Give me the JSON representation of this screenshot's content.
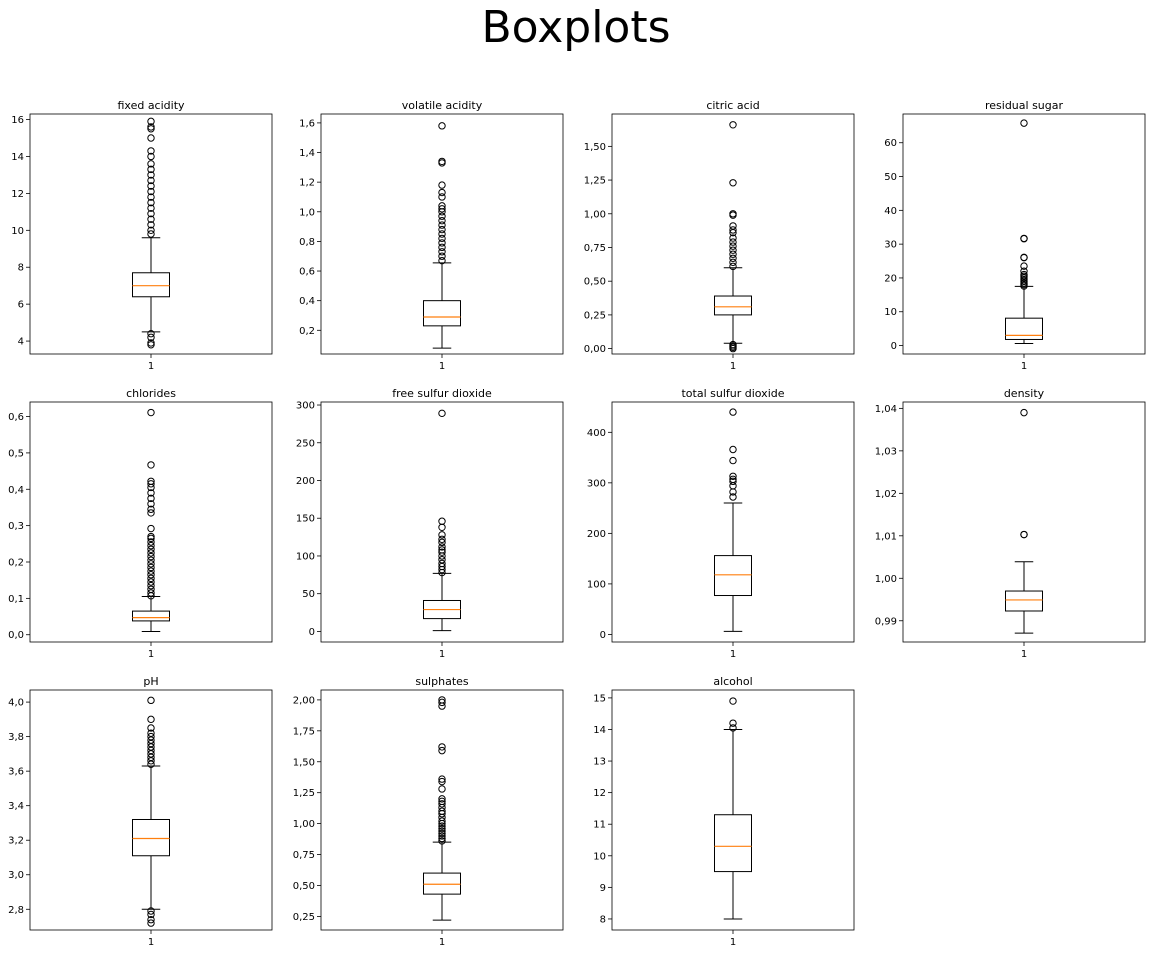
{
  "title": "Boxplots",
  "colors": {
    "median": "#ff7f0e",
    "box": "#000000",
    "flier": "#000000"
  },
  "chart_data": [
    {
      "type": "boxplot",
      "title": "fixed acidity",
      "categories": [
        "1"
      ],
      "ylim": [
        3.3,
        16.3
      ],
      "yticks": [
        4,
        6,
        8,
        10,
        12,
        14,
        16
      ],
      "ytick_labels": [
        "4",
        "6",
        "8",
        "10",
        "12",
        "14",
        "16"
      ],
      "whisker_low": 4.5,
      "q1": 6.4,
      "median": 7.0,
      "q3": 7.7,
      "whisker_high": 9.6,
      "outliers": [
        3.8,
        3.9,
        4.2,
        4.4,
        9.8,
        10.0,
        10.3,
        10.6,
        10.9,
        11.2,
        11.5,
        11.8,
        12.1,
        12.4,
        12.7,
        13.0,
        13.3,
        13.6,
        14.0,
        14.3,
        15.0,
        15.5,
        15.6,
        15.9
      ]
    },
    {
      "type": "boxplot",
      "title": "volatile acidity",
      "categories": [
        "1"
      ],
      "ylim": [
        0.04,
        1.66
      ],
      "yticks": [
        0.2,
        0.4,
        0.6,
        0.8,
        1.0,
        1.2,
        1.4,
        1.6
      ],
      "ytick_labels": [
        "0,2",
        "0,4",
        "0,6",
        "0,8",
        "1,0",
        "1,2",
        "1,4",
        "1,6"
      ],
      "whisker_low": 0.08,
      "q1": 0.23,
      "median": 0.29,
      "q3": 0.4,
      "whisker_high": 0.655,
      "outliers": [
        0.67,
        0.7,
        0.73,
        0.76,
        0.79,
        0.82,
        0.85,
        0.88,
        0.91,
        0.94,
        0.97,
        1.0,
        1.02,
        1.04,
        1.1,
        1.13,
        1.18,
        1.33,
        1.34,
        1.58
      ]
    },
    {
      "type": "boxplot",
      "title": "citric acid",
      "categories": [
        "1"
      ],
      "ylim": [
        -0.04,
        1.74
      ],
      "yticks": [
        0.0,
        0.25,
        0.5,
        0.75,
        1.0,
        1.25,
        1.5
      ],
      "ytick_labels": [
        "0,00",
        "0,25",
        "0,50",
        "0,75",
        "1,00",
        "1,25",
        "1,50"
      ],
      "whisker_low": 0.04,
      "q1": 0.25,
      "median": 0.31,
      "q3": 0.39,
      "whisker_high": 0.6,
      "outliers": [
        0.0,
        0.01,
        0.02,
        0.03,
        0.61,
        0.64,
        0.67,
        0.7,
        0.73,
        0.76,
        0.79,
        0.82,
        0.86,
        0.88,
        0.91,
        0.99,
        1.0,
        1.23,
        1.66
      ]
    },
    {
      "type": "boxplot",
      "title": "residual sugar",
      "categories": [
        "1"
      ],
      "ylim": [
        -2.5,
        68.5
      ],
      "yticks": [
        0,
        10,
        20,
        30,
        40,
        50,
        60
      ],
      "ytick_labels": [
        "0",
        "10",
        "20",
        "30",
        "40",
        "50",
        "60"
      ],
      "whisker_low": 0.6,
      "q1": 1.8,
      "median": 3.0,
      "q3": 8.1,
      "whisker_high": 17.5,
      "outliers": [
        17.6,
        18.0,
        18.5,
        19.0,
        19.5,
        20.0,
        20.5,
        21.0,
        22.0,
        23.5,
        26.0,
        26.1,
        31.6,
        31.7,
        65.8
      ]
    },
    {
      "type": "boxplot",
      "title": "chlorides",
      "categories": [
        "1"
      ],
      "ylim": [
        -0.02,
        0.64
      ],
      "yticks": [
        0.0,
        0.1,
        0.2,
        0.3,
        0.4,
        0.5,
        0.6
      ],
      "ytick_labels": [
        "0,0",
        "0,1",
        "0,2",
        "0,3",
        "0,4",
        "0,5",
        "0,6"
      ],
      "whisker_low": 0.009,
      "q1": 0.038,
      "median": 0.047,
      "q3": 0.065,
      "whisker_high": 0.105,
      "outliers": [
        0.107,
        0.115,
        0.125,
        0.135,
        0.145,
        0.155,
        0.165,
        0.175,
        0.185,
        0.195,
        0.205,
        0.215,
        0.225,
        0.235,
        0.245,
        0.255,
        0.265,
        0.27,
        0.292,
        0.335,
        0.345,
        0.36,
        0.375,
        0.39,
        0.405,
        0.415,
        0.422,
        0.467,
        0.611
      ]
    },
    {
      "type": "boxplot",
      "title": "free sulfur dioxide",
      "categories": [
        "1"
      ],
      "ylim": [
        -14,
        304
      ],
      "yticks": [
        0,
        50,
        100,
        150,
        200,
        250,
        300
      ],
      "ytick_labels": [
        "0",
        "50",
        "100",
        "150",
        "200",
        "250",
        "300"
      ],
      "whisker_low": 1,
      "q1": 17,
      "median": 29,
      "q3": 41,
      "whisker_high": 77,
      "outliers": [
        78,
        82,
        86,
        90,
        95,
        100,
        105,
        108,
        112,
        118,
        122,
        128,
        138,
        146,
        289
      ]
    },
    {
      "type": "boxplot",
      "title": "total sulfur dioxide",
      "categories": [
        "1"
      ],
      "ylim": [
        -15,
        460
      ],
      "yticks": [
        0,
        100,
        200,
        300,
        400
      ],
      "ytick_labels": [
        "0",
        "100",
        "200",
        "300",
        "400"
      ],
      "whisker_low": 6,
      "q1": 77,
      "median": 118,
      "q3": 156,
      "whisker_high": 260,
      "outliers": [
        272,
        282,
        294,
        303,
        307,
        313,
        344,
        366,
        440
      ]
    },
    {
      "type": "boxplot",
      "title": "density",
      "categories": [
        "1"
      ],
      "ylim": [
        0.985,
        1.0415
      ],
      "yticks": [
        0.99,
        1.0,
        1.01,
        1.02,
        1.03,
        1.04
      ],
      "ytick_labels": [
        "0,99",
        "1,00",
        "1,01",
        "1,02",
        "1,03",
        "1,04"
      ],
      "whisker_low": 0.9871,
      "q1": 0.9923,
      "median": 0.9949,
      "q3": 0.997,
      "whisker_high": 1.0039,
      "outliers": [
        1.0103,
        1.0103,
        1.039
      ]
    },
    {
      "type": "boxplot",
      "title": "pH",
      "categories": [
        "1"
      ],
      "ylim": [
        2.68,
        4.07
      ],
      "yticks": [
        2.8,
        3.0,
        3.2,
        3.4,
        3.6,
        3.8,
        4.0
      ],
      "ytick_labels": [
        "2,8",
        "3,0",
        "3,2",
        "3,4",
        "3,6",
        "3,8",
        "4,0"
      ],
      "whisker_low": 2.8,
      "q1": 3.11,
      "median": 3.21,
      "q3": 3.32,
      "whisker_high": 3.63,
      "outliers": [
        2.72,
        2.74,
        2.77,
        2.79,
        3.64,
        3.66,
        3.68,
        3.7,
        3.72,
        3.74,
        3.76,
        3.78,
        3.8,
        3.82,
        3.85,
        3.9,
        4.01
      ]
    },
    {
      "type": "boxplot",
      "title": "sulphates",
      "categories": [
        "1"
      ],
      "ylim": [
        0.14,
        2.08
      ],
      "yticks": [
        0.25,
        0.5,
        0.75,
        1.0,
        1.25,
        1.5,
        1.75,
        2.0
      ],
      "ytick_labels": [
        "0,25",
        "0,50",
        "0,75",
        "1,00",
        "1,25",
        "1,50",
        "1,75",
        "2,00"
      ],
      "whisker_low": 0.22,
      "q1": 0.43,
      "median": 0.51,
      "q3": 0.6,
      "whisker_high": 0.85,
      "outliers": [
        0.86,
        0.88,
        0.9,
        0.92,
        0.94,
        0.96,
        0.98,
        1.0,
        1.02,
        1.05,
        1.08,
        1.1,
        1.13,
        1.16,
        1.18,
        1.2,
        1.28,
        1.34,
        1.36,
        1.59,
        1.62,
        1.95,
        1.98,
        2.0
      ]
    },
    {
      "type": "boxplot",
      "title": "alcohol",
      "categories": [
        "1"
      ],
      "ylim": [
        7.65,
        15.25
      ],
      "yticks": [
        8,
        9,
        10,
        11,
        12,
        13,
        14,
        15
      ],
      "ytick_labels": [
        "8",
        "9",
        "10",
        "11",
        "12",
        "13",
        "14",
        "15"
      ],
      "whisker_low": 8.0,
      "q1": 9.5,
      "median": 10.3,
      "q3": 11.3,
      "whisker_high": 14.0,
      "outliers": [
        14.05,
        14.2,
        14.9
      ]
    }
  ]
}
